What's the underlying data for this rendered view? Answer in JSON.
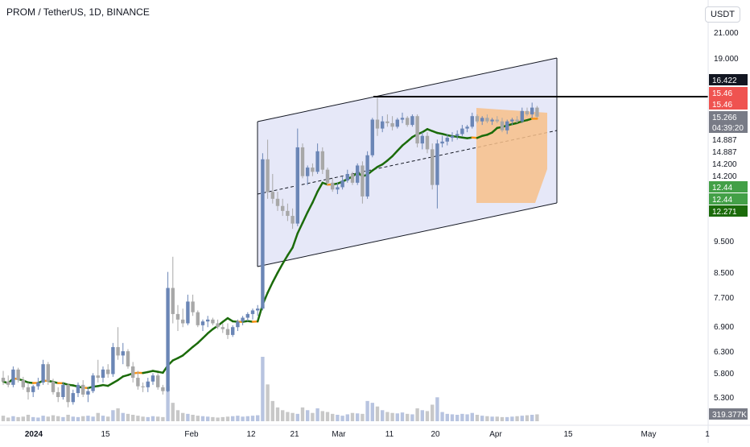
{
  "header": {
    "symbol_line": "PROM / TetherUS, 1D, BINANCE",
    "currency": "USDT"
  },
  "colors": {
    "up": "#6b86b6",
    "down": "#a8a8a8",
    "channel_fill": "#e6e8f8",
    "ma_green": "#1b6b0a",
    "ma_orange": "#f7931a",
    "projection_fill": "#f7c08a",
    "resistance": "#000000",
    "red_label": "#ef5350",
    "green_label": "#43a047"
  },
  "chart_data": {
    "type": "candlestick",
    "y_axis": {
      "scale": "log",
      "ticks": [
        "21.000",
        "19.000",
        "9.500",
        "8.500",
        "7.700",
        "6.900",
        "6.300",
        "5.800",
        "5.300"
      ]
    },
    "x_axis": {
      "ticks": [
        "2024",
        "15",
        "Feb",
        "12",
        "21",
        "Mar",
        "11",
        "20",
        "Apr",
        "15",
        "May",
        "1"
      ]
    },
    "price_labels": [
      {
        "text": "16.422",
        "style": "black"
      },
      {
        "text": "15.46",
        "style": "red"
      },
      {
        "text": "15.46",
        "style": "red"
      },
      {
        "text": "15.266",
        "style": "gray"
      },
      {
        "text": "04:39:20",
        "style": "gray"
      },
      {
        "text": "14.887",
        "style": "plain"
      },
      {
        "text": "14.887",
        "style": "plain"
      },
      {
        "text": "14.200",
        "style": "plain"
      },
      {
        "text": "14.200",
        "style": "plain"
      },
      {
        "text": "12.44",
        "style": "green"
      },
      {
        "text": "12.44",
        "style": "green"
      },
      {
        "text": "12.271",
        "style": "darkgreen"
      },
      {
        "text": "319.377K",
        "style": "gray"
      }
    ],
    "resistance_level": 16.422,
    "candles": [
      [
        5.7,
        5.85,
        5.55,
        5.62
      ],
      [
        5.62,
        5.75,
        5.5,
        5.55
      ],
      [
        5.55,
        5.95,
        5.5,
        5.88
      ],
      [
        5.88,
        5.92,
        5.6,
        5.65
      ],
      [
        5.65,
        5.72,
        5.45,
        5.5
      ],
      [
        5.5,
        5.6,
        5.25,
        5.4
      ],
      [
        5.4,
        5.55,
        5.3,
        5.52
      ],
      [
        5.52,
        5.7,
        5.45,
        5.6
      ],
      [
        5.6,
        6.1,
        5.55,
        6.0
      ],
      [
        6.0,
        6.05,
        5.55,
        5.62
      ],
      [
        5.62,
        5.68,
        5.35,
        5.4
      ],
      [
        5.4,
        5.5,
        5.2,
        5.3
      ],
      [
        5.3,
        5.6,
        5.25,
        5.55
      ],
      [
        5.55,
        5.58,
        5.1,
        5.2
      ],
      [
        5.2,
        5.45,
        5.15,
        5.38
      ],
      [
        5.38,
        5.6,
        5.3,
        5.55
      ],
      [
        5.55,
        5.65,
        5.3,
        5.35
      ],
      [
        5.35,
        5.5,
        5.2,
        5.42
      ],
      [
        5.42,
        5.8,
        5.38,
        5.75
      ],
      [
        5.75,
        6.1,
        5.6,
        5.7
      ],
      [
        5.7,
        5.95,
        5.6,
        5.88
      ],
      [
        5.88,
        6.0,
        5.7,
        5.78
      ],
      [
        5.78,
        6.5,
        5.72,
        6.4
      ],
      [
        6.4,
        6.9,
        6.1,
        6.2
      ],
      [
        6.2,
        6.5,
        6.0,
        6.3
      ],
      [
        6.3,
        6.35,
        5.9,
        5.95
      ],
      [
        5.95,
        6.05,
        5.6,
        5.7
      ],
      [
        5.7,
        5.85,
        5.45,
        5.52
      ],
      [
        5.52,
        5.6,
        5.4,
        5.5
      ],
      [
        5.5,
        5.7,
        5.4,
        5.62
      ],
      [
        5.62,
        5.8,
        5.55,
        5.75
      ],
      [
        5.75,
        5.8,
        5.45,
        5.5
      ],
      [
        5.5,
        5.55,
        5.35,
        5.42
      ],
      [
        5.42,
        8.5,
        5.4,
        8.0
      ],
      [
        8.0,
        9.0,
        7.0,
        7.25
      ],
      [
        7.25,
        7.5,
        6.8,
        7.1
      ],
      [
        7.1,
        7.4,
        6.9,
        7.0
      ],
      [
        7.0,
        7.8,
        6.95,
        7.6
      ],
      [
        7.6,
        7.8,
        7.2,
        7.3
      ],
      [
        7.3,
        7.35,
        6.9,
        6.95
      ],
      [
        6.95,
        7.1,
        6.8,
        7.05
      ],
      [
        7.05,
        7.2,
        6.9,
        7.1
      ],
      [
        7.1,
        7.15,
        6.95,
        7.0
      ],
      [
        7.0,
        7.1,
        6.85,
        6.9
      ],
      [
        6.9,
        7.0,
        6.75,
        6.85
      ],
      [
        6.85,
        7.0,
        6.6,
        6.7
      ],
      [
        6.7,
        6.95,
        6.65,
        6.9
      ],
      [
        6.9,
        7.1,
        6.8,
        7.05
      ],
      [
        7.05,
        7.2,
        6.95,
        7.15
      ],
      [
        7.15,
        7.3,
        7.05,
        7.25
      ],
      [
        7.25,
        7.4,
        7.1,
        7.35
      ],
      [
        7.35,
        7.5,
        7.2,
        7.4
      ],
      [
        7.4,
        13.3,
        7.35,
        13.0
      ],
      [
        13.0,
        14.0,
        11.2,
        11.5
      ],
      [
        11.5,
        12.3,
        11.0,
        11.2
      ],
      [
        11.2,
        11.5,
        10.7,
        10.9
      ],
      [
        10.9,
        11.2,
        10.5,
        10.7
      ],
      [
        10.7,
        11.0,
        10.3,
        10.5
      ],
      [
        10.5,
        10.8,
        10.0,
        10.2
      ],
      [
        10.2,
        14.6,
        10.1,
        13.6
      ],
      [
        13.6,
        13.8,
        12.1,
        12.2
      ],
      [
        12.2,
        12.7,
        11.8,
        12.6
      ],
      [
        12.6,
        12.8,
        12.2,
        12.4
      ],
      [
        12.4,
        13.8,
        12.3,
        13.4
      ],
      [
        13.4,
        13.6,
        12.3,
        12.5
      ],
      [
        12.5,
        12.6,
        11.8,
        11.9
      ],
      [
        11.9,
        12.1,
        11.5,
        11.6
      ],
      [
        11.6,
        11.9,
        11.4,
        11.7
      ],
      [
        11.7,
        12.2,
        11.6,
        12.0
      ],
      [
        12.0,
        12.5,
        11.9,
        12.3
      ],
      [
        12.3,
        12.4,
        11.8,
        11.9
      ],
      [
        11.9,
        12.8,
        11.8,
        12.7
      ],
      [
        12.7,
        12.9,
        11.0,
        11.3
      ],
      [
        11.3,
        13.4,
        11.2,
        13.2
      ],
      [
        13.2,
        15.2,
        13.1,
        15.1
      ],
      [
        15.1,
        16.4,
        14.2,
        14.6
      ],
      [
        14.6,
        15.3,
        14.4,
        15.0
      ],
      [
        15.0,
        15.4,
        14.7,
        14.9
      ],
      [
        14.9,
        15.3,
        14.5,
        14.7
      ],
      [
        14.7,
        15.2,
        14.6,
        15.1
      ],
      [
        15.1,
        15.5,
        14.9,
        15.2
      ],
      [
        15.2,
        15.3,
        14.7,
        14.8
      ],
      [
        14.8,
        15.4,
        14.7,
        15.3
      ],
      [
        15.3,
        15.4,
        13.6,
        13.8
      ],
      [
        13.8,
        14.4,
        13.5,
        14.2
      ],
      [
        14.2,
        14.4,
        13.3,
        13.5
      ],
      [
        13.5,
        13.8,
        11.6,
        11.8
      ],
      [
        11.8,
        14.0,
        10.8,
        13.8
      ],
      [
        13.8,
        14.2,
        13.6,
        13.9
      ],
      [
        13.9,
        14.3,
        13.7,
        14.1
      ],
      [
        14.1,
        14.4,
        13.9,
        14.2
      ],
      [
        14.2,
        14.5,
        14.0,
        14.3
      ],
      [
        14.3,
        14.8,
        14.2,
        14.6
      ],
      [
        14.6,
        14.8,
        14.4,
        14.7
      ],
      [
        14.7,
        15.5,
        14.6,
        15.3
      ],
      [
        15.3,
        15.4,
        14.9,
        15.0
      ],
      [
        15.0,
        15.3,
        14.8,
        15.2
      ],
      [
        15.2,
        15.4,
        14.9,
        15.0
      ],
      [
        15.0,
        15.2,
        14.8,
        15.1
      ],
      [
        15.1,
        15.3,
        14.9,
        15.0
      ],
      [
        15.0,
        15.2,
        14.4,
        14.5
      ],
      [
        14.5,
        15.1,
        14.3,
        15.0
      ],
      [
        15.0,
        15.2,
        14.8,
        15.1
      ],
      [
        15.1,
        15.3,
        14.9,
        15.0
      ],
      [
        15.0,
        15.8,
        14.9,
        15.6
      ],
      [
        15.6,
        15.8,
        15.3,
        15.4
      ],
      [
        15.4,
        16.1,
        15.2,
        15.8
      ],
      [
        15.8,
        15.9,
        15.2,
        15.27
      ]
    ],
    "volume": [
      60,
      40,
      55,
      45,
      50,
      70,
      45,
      40,
      60,
      50,
      65,
      55,
      45,
      70,
      50,
      45,
      55,
      60,
      50,
      90,
      60,
      50,
      120,
      140,
      90,
      80,
      70,
      60,
      50,
      45,
      55,
      50,
      45,
      380,
      200,
      120,
      90,
      80,
      70,
      60,
      55,
      50,
      45,
      40,
      45,
      50,
      55,
      60,
      50,
      55,
      60,
      65,
      700,
      400,
      220,
      150,
      120,
      100,
      90,
      80,
      150,
      120,
      90,
      140,
      110,
      100,
      80,
      70,
      60,
      75,
      90,
      85,
      80,
      220,
      200,
      160,
      120,
      100,
      90,
      85,
      95,
      80,
      75,
      140,
      120,
      110,
      180,
      260,
      100,
      80,
      75,
      70,
      80,
      75,
      90,
      70,
      60,
      55,
      50,
      50,
      45,
      45,
      50,
      55,
      60,
      65,
      70,
      75
    ]
  }
}
